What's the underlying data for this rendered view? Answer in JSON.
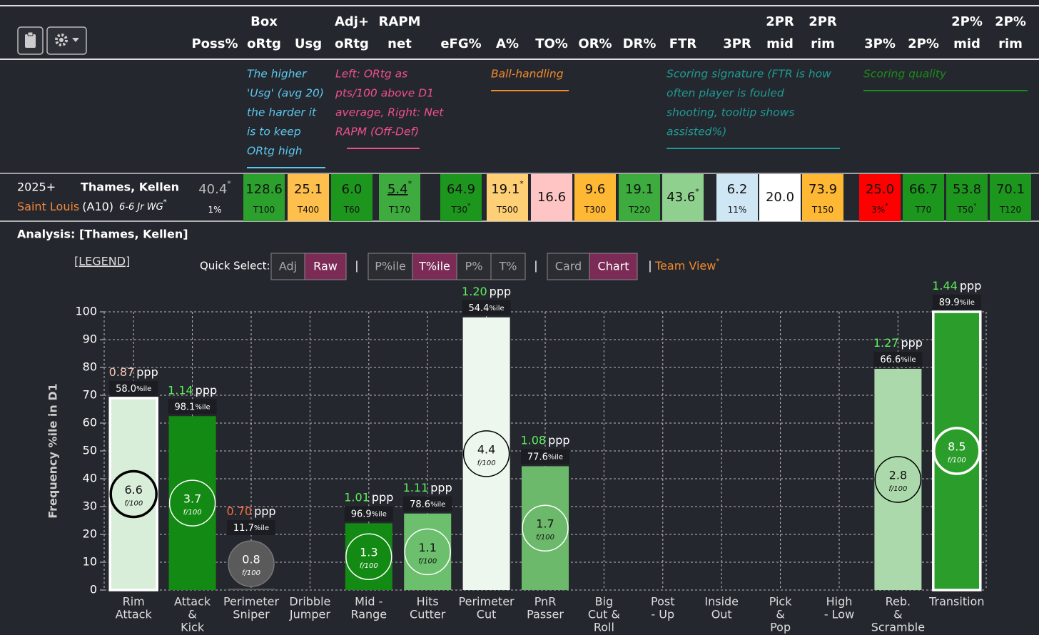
{
  "table": {
    "columns": [
      [
        "Poss%"
      ],
      [
        "Box",
        "oRtg"
      ],
      [
        "Usg"
      ],
      [
        "Adj+",
        "oRtg"
      ],
      [
        "RAPM",
        "net"
      ],
      [
        "eFG%"
      ],
      [
        "A%"
      ],
      [
        "TO%"
      ],
      [
        "OR%"
      ],
      [
        "DR%"
      ],
      [
        "FTR"
      ],
      [
        "3PR"
      ],
      [
        "2PR",
        "mid"
      ],
      [
        "2PR",
        "rim"
      ],
      [
        "3P%"
      ],
      [
        "2P%"
      ],
      [
        "2P%",
        "mid"
      ],
      [
        "2P%",
        "rim"
      ]
    ],
    "notes": [
      {
        "lines": [
          "The higher",
          "'Usg' (avg 20)",
          "the harder it",
          "is to keep",
          "ORtg high"
        ],
        "color": "#5bc8ee"
      },
      {
        "lines": [
          "Left: ORtg as",
          "pts/100 above D1",
          "average, Right: Net",
          "RAPM (Off-Def)"
        ],
        "color": "#f0508a"
      },
      {
        "lines": [
          "Ball-handling"
        ],
        "color": "#f08a2c"
      },
      {
        "lines": [
          "Scoring signature (FTR is how",
          "often player is fouled",
          "shooting, tooltip shows",
          "assisted%)"
        ],
        "color": "#1f9c94"
      },
      {
        "lines": [
          "Scoring quality"
        ],
        "color": "#1a8c1a"
      }
    ],
    "player": {
      "season": "2025+",
      "name": "Thames, Kellen",
      "team": "Saint Louis",
      "conf": "(A10)",
      "info": "6-6 Jr WG",
      "info_mark": "*"
    },
    "cells": [
      {
        "value": "40.4",
        "mark": "*",
        "sub": "1%"
      },
      {
        "value": "128.6",
        "sub": "T100",
        "bg": "#2ca02c"
      },
      {
        "value": "25.1",
        "sub": "T400",
        "bg": "#ffbf4d"
      },
      {
        "value": "6.0",
        "sub": "T60",
        "bg": "#1d961d"
      },
      {
        "value": "5.4",
        "mark": "*",
        "sub": "T170",
        "bg": "#3dab3d",
        "underline": true
      },
      {
        "value": "64.9",
        "sub": "T30",
        "sub_mark": "*",
        "bg": "#1d961d"
      },
      {
        "value": "19.1",
        "mark": "*",
        "sub": "T500",
        "bg": "#ffcf75"
      },
      {
        "value": "16.6",
        "bg": "#ffc4c4"
      },
      {
        "value": "9.6",
        "sub": "T300",
        "bg": "#ffb833"
      },
      {
        "value": "19.1",
        "sub": "T220",
        "bg": "#3dab3d"
      },
      {
        "value": "43.6",
        "mark": "*",
        "bg": "#8fd08f"
      },
      {
        "value": "6.2",
        "sub": "11%",
        "bg": "#cfe7f5"
      },
      {
        "value": "20.0",
        "bg": "#ffffff"
      },
      {
        "value": "73.9",
        "sub": "T150",
        "bg": "#ffb833"
      },
      {
        "value": "25.0",
        "sub": "3%",
        "sub_mark": "*",
        "bg": "#ff0000"
      },
      {
        "value": "66.7",
        "sub": "T70",
        "bg": "#1d961d"
      },
      {
        "value": "53.8",
        "sub": "T50",
        "sub_mark": "*",
        "bg": "#1d961d"
      },
      {
        "value": "70.1",
        "sub": "T120",
        "bg": "#1d961d"
      }
    ]
  },
  "analysis": {
    "title": "Analysis: [Thames, Kellen]",
    "legend": "[LEGEND]",
    "quick_select": "Quick Select:",
    "groups": [
      {
        "options": [
          "Adj",
          "Raw"
        ],
        "active": 1
      },
      {
        "options": [
          "P%ile",
          "T%ile",
          "P%",
          "T%"
        ],
        "active": 1
      },
      {
        "options": [
          "Card",
          "Chart"
        ],
        "active": 1
      }
    ],
    "active_color": "#7b2b56",
    "separator": "|",
    "team_view": "Team View",
    "team_view_mark": "*"
  },
  "chart_data": {
    "type": "bar",
    "ylabel": "Frequency %ile in D1",
    "categories": [
      [
        "Rim",
        "Attack"
      ],
      [
        "Attack",
        "&",
        "Kick"
      ],
      [
        "Perimeter",
        "Sniper"
      ],
      [
        "Dribble",
        "Jumper"
      ],
      [
        "Mid -",
        "Range"
      ],
      [
        "Hits",
        "Cutter"
      ],
      [
        "Perimeter",
        "Cut"
      ],
      [
        "PnR",
        "Passer"
      ],
      [
        "Big",
        "Cut &",
        "Roll"
      ],
      [
        "Post",
        "- Up"
      ],
      [
        "Inside",
        "Out"
      ],
      [
        "Pick",
        "&",
        "Pop"
      ],
      [
        "High",
        "- Low"
      ],
      [
        "Reb.",
        "&",
        "Scramble"
      ],
      [
        "Transition"
      ]
    ],
    "values": [
      69,
      62.5,
      0.5,
      null,
      24,
      27.5,
      98,
      44.5,
      null,
      null,
      null,
      null,
      null,
      79.5,
      100
    ],
    "colors": [
      "#d9eed9",
      "#138a13",
      "#5a5a5a",
      null,
      "#138a13",
      "#6cbf6c",
      "#eef7ee",
      "#6cb96c",
      null,
      null,
      null,
      null,
      null,
      "#acd9ac",
      "#2a9d2a"
    ],
    "bar_borders": [
      "#ffffff",
      null,
      null,
      null,
      null,
      null,
      null,
      null,
      null,
      null,
      null,
      null,
      null,
      null,
      "#ffffff"
    ],
    "ppp": {
      "unit": "ppp",
      "values": [
        0.87,
        1.14,
        0.7,
        null,
        1.01,
        1.11,
        1.2,
        1.08,
        null,
        null,
        null,
        null,
        null,
        1.27,
        1.44
      ],
      "value_labels": [
        "0.87",
        "1.14",
        "0.70",
        null,
        "1.01",
        "1.11",
        "1.20",
        "1.08",
        null,
        null,
        null,
        null,
        null,
        "1.27",
        "1.44"
      ],
      "colors": [
        "#f7c9b3",
        "#5df05d",
        "#ff6a3d",
        null,
        "#5df05d",
        "#5df05d",
        "#5df05d",
        "#5df05d",
        null,
        null,
        null,
        null,
        null,
        "#5df05d",
        "#5df05d"
      ]
    },
    "ppp_pct": {
      "unit": "%ile",
      "values": [
        58,
        98.1,
        11.7,
        null,
        96.9,
        78.6,
        54.4,
        77.6,
        null,
        null,
        null,
        null,
        null,
        66.6,
        89.9
      ],
      "value_labels": [
        "58.0",
        "98.1",
        "11.7",
        null,
        "96.9",
        "78.6",
        "54.4",
        "77.6",
        null,
        null,
        null,
        null,
        null,
        "66.6",
        "89.9"
      ]
    },
    "f100": {
      "unit": "f/100",
      "values": [
        6.6,
        3.7,
        0.8,
        null,
        1.3,
        1.1,
        4.4,
        1.7,
        null,
        null,
        null,
        null,
        null,
        2.8,
        8.5
      ],
      "value_labels": [
        "6.6",
        "3.7",
        "0.8",
        null,
        "1.3",
        "1.1",
        "4.4",
        "1.7",
        null,
        null,
        null,
        null,
        null,
        "2.8",
        "8.5"
      ],
      "borders": [
        "#000000",
        "#ffffff",
        "#777777",
        null,
        "#ffffff",
        "#ffffff",
        "#000000",
        "#ffffff",
        null,
        null,
        null,
        null,
        null,
        "#000000",
        "#ffffff"
      ]
    },
    "ylim": [
      0,
      100
    ],
    "yticks": [
      0,
      10,
      20,
      30,
      40,
      50,
      60,
      70,
      80,
      90,
      100
    ],
    "grid": true
  }
}
